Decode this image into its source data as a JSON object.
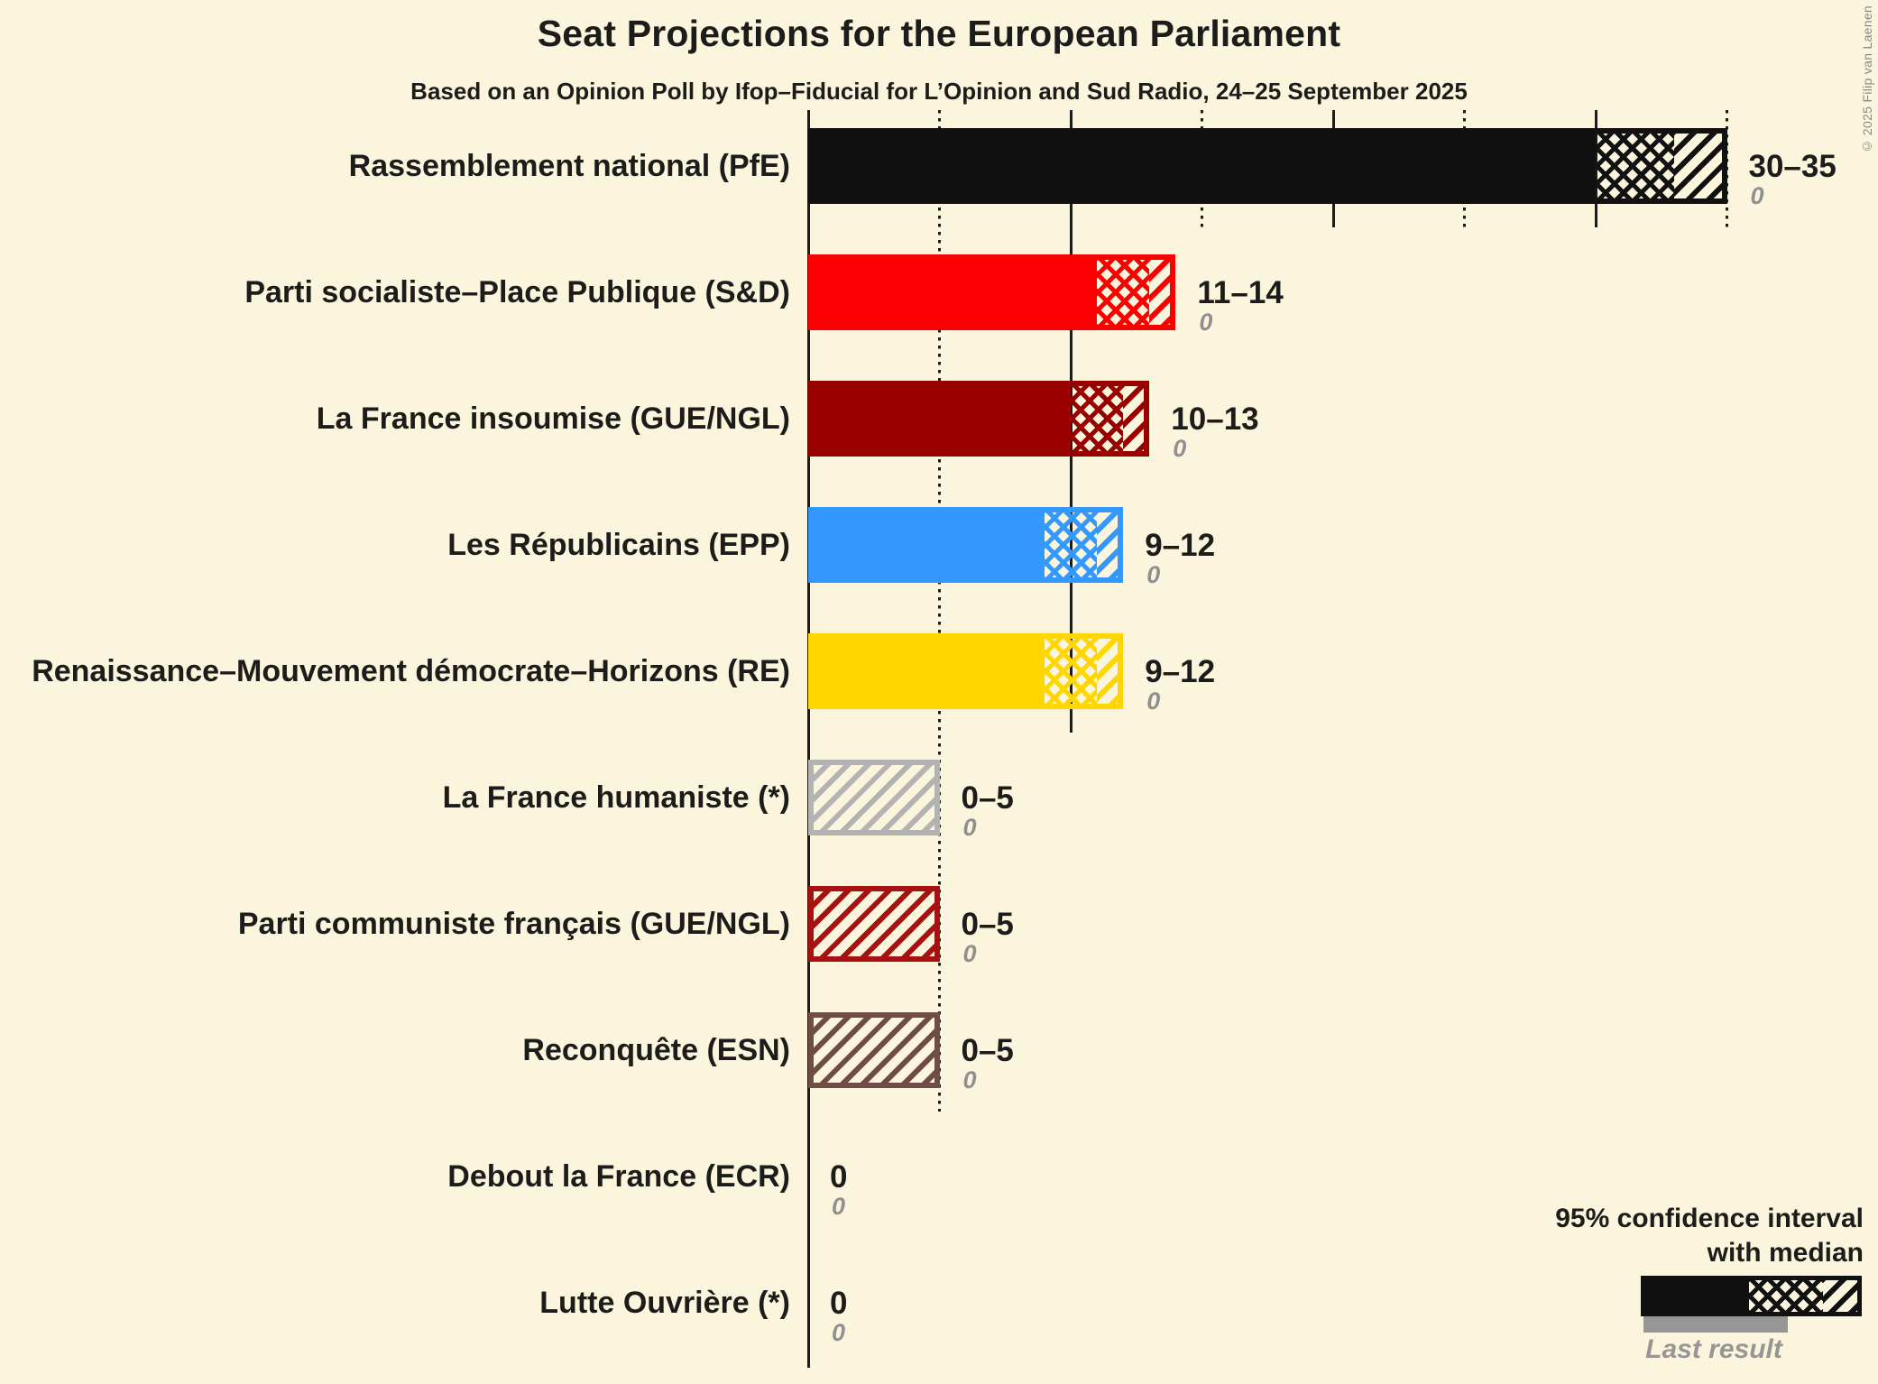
{
  "title": "Seat Projections for the European Parliament",
  "subtitle": "Based on an Opinion Poll by Ifop–Fiducial for L’Opinion and Sud Radio, 24–25 September 2025",
  "copyright": "© 2025 Filip van Laenen",
  "colors": {
    "background": "#FBF5DD",
    "text": "#1C1C1A",
    "muted_gray": "#8F8F8F",
    "last_result_gray": "#969696",
    "gridline": "#1C1C1A"
  },
  "legend": {
    "line1": "95% confidence interval",
    "line2": "with median",
    "last_result": "Last result"
  },
  "chart_data": {
    "type": "bar",
    "orientation": "horizontal",
    "title": "Seat Projections for the European Parliament",
    "x_axis": {
      "min": 0,
      "max": 35,
      "gridline_step": 5,
      "solid_gridlines": [
        0,
        10,
        20,
        30
      ],
      "dotted_gridlines": [
        5,
        15,
        25,
        35
      ],
      "tick_labels_visible": false
    },
    "bar_style": "solid to CI low, crosshatch to median, diagonal hatch to CI high",
    "parties": [
      {
        "label": "Rassemblement national (PfE)",
        "ci_low": 30,
        "median": 33,
        "ci_high": 35,
        "range_label": "30–35",
        "last_result": 0,
        "last_result_label": "0",
        "color": "#111111"
      },
      {
        "label": "Parti socialiste–Place Publique (S&D)",
        "ci_low": 11,
        "median": 13,
        "ci_high": 14,
        "range_label": "11–14",
        "last_result": 0,
        "last_result_label": "0",
        "color": "#FA0000"
      },
      {
        "label": "La France insoumise (GUE/NGL)",
        "ci_low": 10,
        "median": 12,
        "ci_high": 13,
        "range_label": "10–13",
        "last_result": 0,
        "last_result_label": "0",
        "color": "#990000"
      },
      {
        "label": "Les Républicains (EPP)",
        "ci_low": 9,
        "median": 11,
        "ci_high": 12,
        "range_label": "9–12",
        "last_result": 0,
        "last_result_label": "0",
        "color": "#3399FF"
      },
      {
        "label": "Renaissance–Mouvement démocrate–Horizons (RE)",
        "ci_low": 9,
        "median": 11,
        "ci_high": 12,
        "range_label": "9–12",
        "last_result": 0,
        "last_result_label": "0",
        "color": "#FFD600"
      },
      {
        "label": "La France humaniste (*)",
        "ci_low": 0,
        "median": 0,
        "ci_high": 5,
        "range_label": "0–5",
        "last_result": 0,
        "last_result_label": "0",
        "color": "#B3B3B3"
      },
      {
        "label": "Parti communiste français (GUE/NGL)",
        "ci_low": 0,
        "median": 0,
        "ci_high": 5,
        "range_label": "0–5",
        "last_result": 0,
        "last_result_label": "0",
        "color": "#A81111"
      },
      {
        "label": "Reconquête (ESN)",
        "ci_low": 0,
        "median": 0,
        "ci_high": 5,
        "range_label": "0–5",
        "last_result": 0,
        "last_result_label": "0",
        "color": "#6F4D44"
      },
      {
        "label": "Debout la France (ECR)",
        "ci_low": 0,
        "median": 0,
        "ci_high": 0,
        "range_label": "0",
        "last_result": 0,
        "last_result_label": "0",
        "color": null
      },
      {
        "label": "Lutte Ouvrière (*)",
        "ci_low": 0,
        "median": 0,
        "ci_high": 0,
        "range_label": "0",
        "last_result": 0,
        "last_result_label": "0",
        "color": null
      }
    ],
    "legend": {
      "ci_label": "95% confidence interval with median",
      "last_result_label": "Last result"
    }
  }
}
